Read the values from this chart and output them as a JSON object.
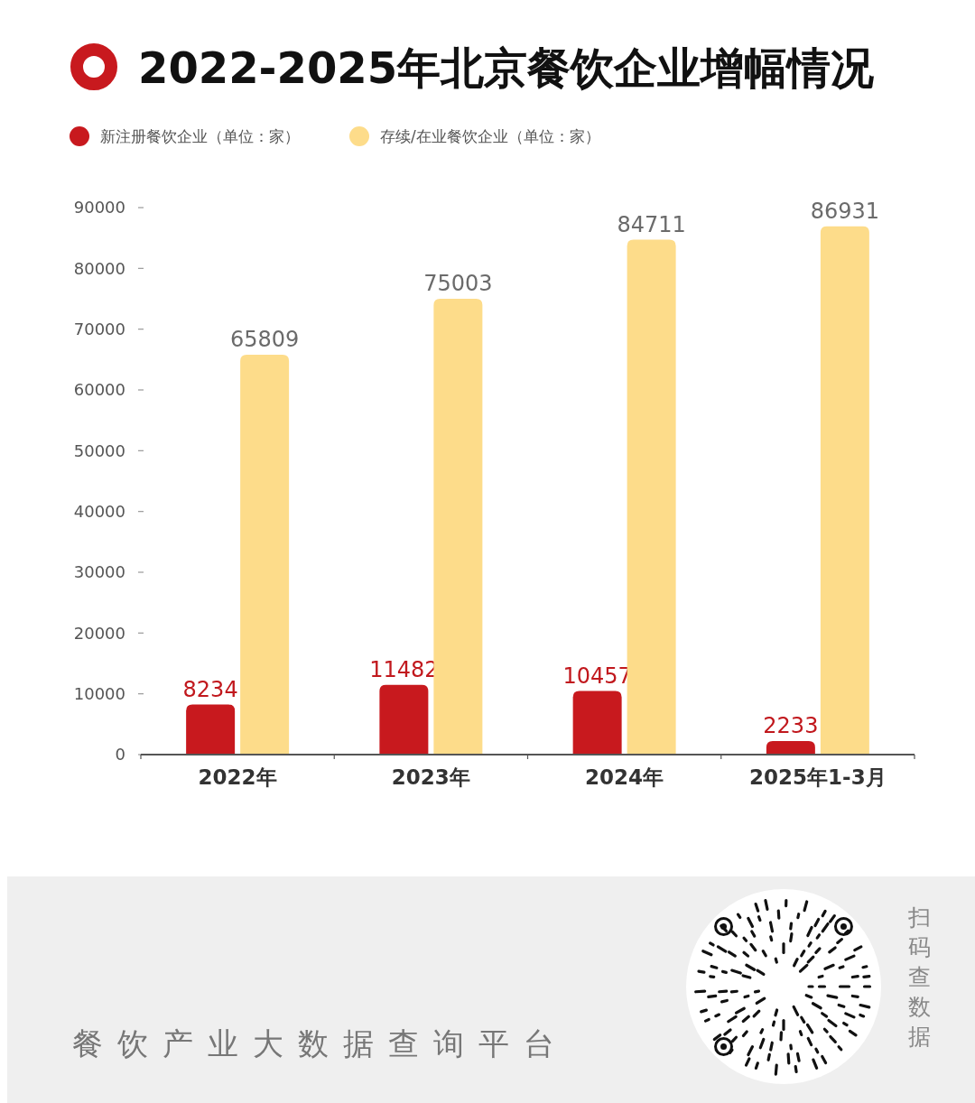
{
  "chart_data": {
    "type": "bar",
    "title": "2022-2025年北京餐饮企业增幅情况",
    "categories": [
      "2022年",
      "2023年",
      "2024年",
      "2025年1-3月"
    ],
    "series": [
      {
        "name": "新注册餐饮企业（单位：家）",
        "color": "#c8191e",
        "values": [
          8234,
          11482,
          10457,
          2233
        ]
      },
      {
        "name": "存续/在业餐饮企业（单位：家）",
        "color": "#fddc8a",
        "values": [
          65809,
          75003,
          84711,
          86931
        ]
      }
    ],
    "ylim": [
      0,
      90000
    ],
    "yticks": [
      0,
      10000,
      20000,
      30000,
      40000,
      50000,
      60000,
      70000,
      80000,
      90000
    ],
    "legend": "top left",
    "data_labels": true,
    "annotations": [
      "餐饮产业大数据查询平台",
      "扫码查数据"
    ]
  }
}
